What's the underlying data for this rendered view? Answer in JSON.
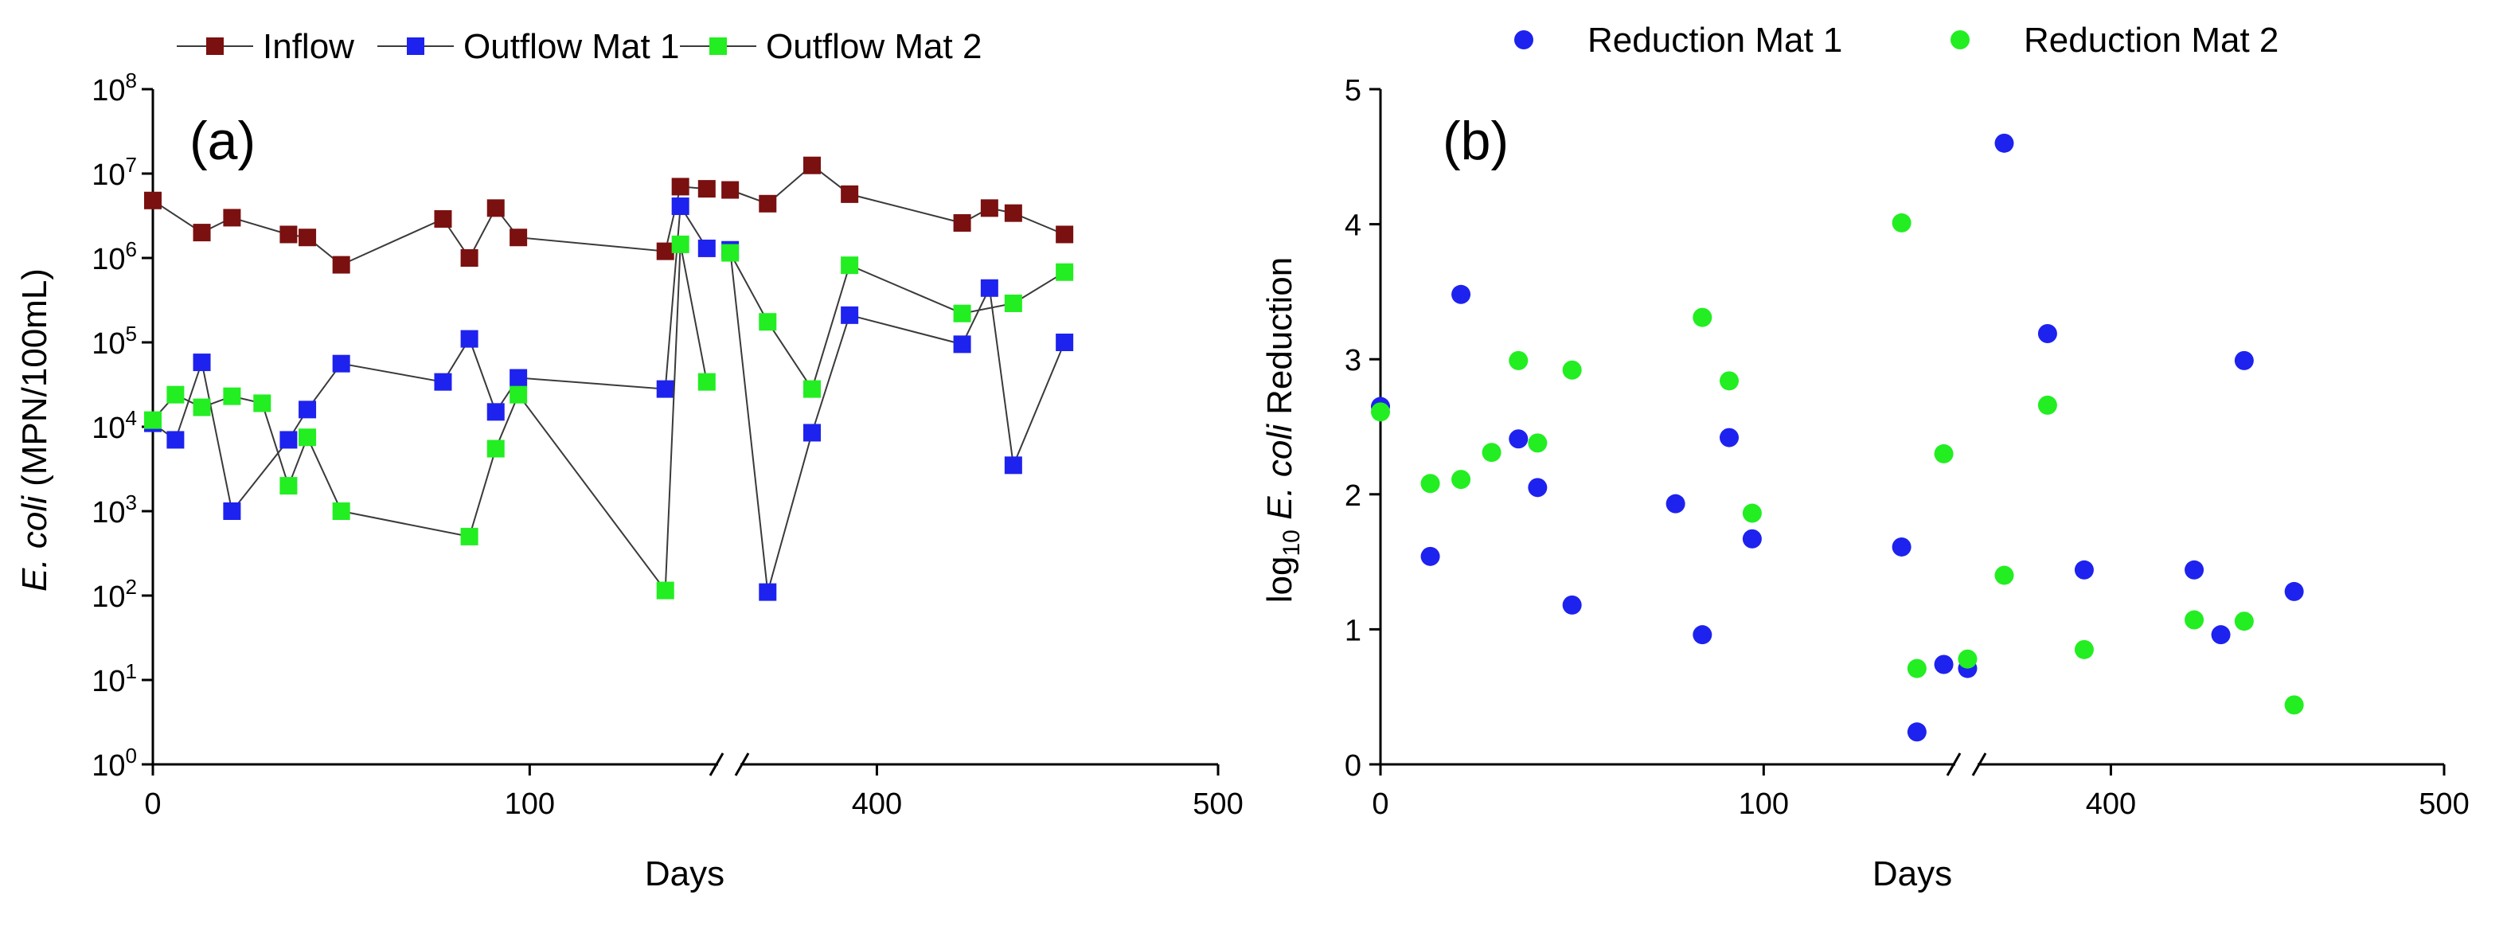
{
  "chart_data": [
    {
      "panel": "(a)",
      "type": "line",
      "xlabel": "Days",
      "ylabel": "E. coli (MPN/100mL)",
      "yscale": "log",
      "ylim": [
        1,
        100000000
      ],
      "x_segments": [
        [
          0,
          150
        ],
        [
          360,
          500
        ]
      ],
      "x_ticks": [
        {
          "value": 0,
          "label": "0"
        },
        {
          "value": 100,
          "label": "100"
        },
        {
          "value": 400,
          "label": "400"
        },
        {
          "value": 500,
          "label": "500"
        }
      ],
      "y_ticks": [
        {
          "exp": 0,
          "base": "10",
          "sup": "0"
        },
        {
          "exp": 1,
          "base": "10",
          "sup": "1"
        },
        {
          "exp": 2,
          "base": "10",
          "sup": "2"
        },
        {
          "exp": 3,
          "base": "10",
          "sup": "3"
        },
        {
          "exp": 4,
          "base": "10",
          "sup": "4"
        },
        {
          "exp": 5,
          "base": "10",
          "sup": "5"
        },
        {
          "exp": 6,
          "base": "10",
          "sup": "6"
        },
        {
          "exp": 7,
          "base": "10",
          "sup": "7"
        },
        {
          "exp": 8,
          "base": "10",
          "sup": "8"
        }
      ],
      "legend_position": "top",
      "series": [
        {
          "name": "Inflow",
          "color": "#7b1010",
          "points": [
            {
              "x": 0,
              "y": 4800000
            },
            {
              "x": 13,
              "y": 2000000
            },
            {
              "x": 21,
              "y": 3000000
            },
            {
              "x": 36,
              "y": 1900000
            },
            {
              "x": 41,
              "y": 1750000
            },
            {
              "x": 50,
              "y": 830000
            },
            {
              "x": 77,
              "y": 2900000
            },
            {
              "x": 84,
              "y": 1000000
            },
            {
              "x": 91,
              "y": 3900000
            },
            {
              "x": 97,
              "y": 1750000
            },
            {
              "x": 136,
              "y": 1200000
            },
            {
              "x": 140,
              "y": 7000000
            },
            {
              "x": 147,
              "y": 6600000
            },
            {
              "x": 357,
              "y": 6400000
            },
            {
              "x": 368,
              "y": 4400000
            },
            {
              "x": 381,
              "y": 12500000
            },
            {
              "x": 392,
              "y": 5700000
            },
            {
              "x": 425,
              "y": 2600000
            },
            {
              "x": 433,
              "y": 3900000
            },
            {
              "x": 440,
              "y": 3400000
            },
            {
              "x": 455,
              "y": 1900000
            }
          ]
        },
        {
          "name": "Outflow Mat 1",
          "color": "#1e22ee",
          "points": [
            {
              "x": 0,
              "y": 11000
            },
            {
              "x": 6,
              "y": 7000
            },
            {
              "x": 13,
              "y": 58000
            },
            {
              "x": 21,
              "y": 1000
            },
            {
              "x": 36,
              "y": 7000
            },
            {
              "x": 41,
              "y": 16000
            },
            {
              "x": 50,
              "y": 56000
            },
            {
              "x": 77,
              "y": 34000
            },
            {
              "x": 84,
              "y": 110000
            },
            {
              "x": 91,
              "y": 15000
            },
            {
              "x": 97,
              "y": 38000
            },
            {
              "x": 136,
              "y": 28000
            },
            {
              "x": 140,
              "y": 4100000
            },
            {
              "x": 147,
              "y": 1300000
            },
            {
              "x": 357,
              "y": 1250000
            },
            {
              "x": 368,
              "y": 110
            },
            {
              "x": 381,
              "y": 8500
            },
            {
              "x": 392,
              "y": 210000
            },
            {
              "x": 425,
              "y": 95000
            },
            {
              "x": 433,
              "y": 440000
            },
            {
              "x": 440,
              "y": 3500
            },
            {
              "x": 455,
              "y": 100000
            }
          ]
        },
        {
          "name": "Outflow Mat 2",
          "color": "#22ee22",
          "points": [
            {
              "x": 0,
              "y": 12000
            },
            {
              "x": 6,
              "y": 24000
            },
            {
              "x": 13,
              "y": 17000
            },
            {
              "x": 21,
              "y": 23000
            },
            {
              "x": 29,
              "y": 19000
            },
            {
              "x": 36,
              "y": 2000
            },
            {
              "x": 41,
              "y": 7500
            },
            {
              "x": 50,
              "y": 1000
            },
            {
              "x": 84,
              "y": 500
            },
            {
              "x": 91,
              "y": 5500
            },
            {
              "x": 97,
              "y": 24000
            },
            {
              "x": 136,
              "y": 115
            },
            {
              "x": 140,
              "y": 1450000
            },
            {
              "x": 147,
              "y": 34000
            },
            {
              "x": 357,
              "y": 1150000
            },
            {
              "x": 368,
              "y": 175000
            },
            {
              "x": 381,
              "y": 28000
            },
            {
              "x": 392,
              "y": 820000
            },
            {
              "x": 425,
              "y": 220000
            },
            {
              "x": 440,
              "y": 290000
            },
            {
              "x": 455,
              "y": 680000
            }
          ]
        }
      ]
    },
    {
      "panel": "(b)",
      "type": "scatter",
      "xlabel": "Days",
      "ylabel": "log10 E. coli Reduction",
      "ylabel_parts": {
        "pre": "log",
        "sub": "10",
        "italic": " E. coli",
        "post": " Reduction"
      },
      "ylim": [
        0,
        5
      ],
      "x_segments": [
        [
          0,
          150
        ],
        [
          360,
          500
        ]
      ],
      "x_ticks": [
        {
          "value": 0,
          "label": "0"
        },
        {
          "value": 100,
          "label": "100"
        },
        {
          "value": 400,
          "label": "400"
        },
        {
          "value": 500,
          "label": "500"
        }
      ],
      "y_ticks": [
        {
          "value": 0,
          "label": "0"
        },
        {
          "value": 1,
          "label": "1"
        },
        {
          "value": 2,
          "label": "2"
        },
        {
          "value": 3,
          "label": "3"
        },
        {
          "value": 4,
          "label": "4"
        },
        {
          "value": 5,
          "label": "5"
        }
      ],
      "legend_position": "top",
      "series": [
        {
          "name": "Reduction Mat 1",
          "color": "#1e22ee",
          "points": [
            {
              "x": 0,
              "y": 2.65
            },
            {
              "x": 13,
              "y": 1.54
            },
            {
              "x": 21,
              "y": 3.48
            },
            {
              "x": 36,
              "y": 2.41
            },
            {
              "x": 41,
              "y": 2.05
            },
            {
              "x": 50,
              "y": 1.18
            },
            {
              "x": 77,
              "y": 1.93
            },
            {
              "x": 84,
              "y": 0.96
            },
            {
              "x": 91,
              "y": 2.42
            },
            {
              "x": 97,
              "y": 1.67
            },
            {
              "x": 136,
              "y": 1.61
            },
            {
              "x": 140,
              "y": 0.24
            },
            {
              "x": 147,
              "y": 0.74
            },
            {
              "x": 357,
              "y": 0.71
            },
            {
              "x": 368,
              "y": 4.6
            },
            {
              "x": 381,
              "y": 3.19
            },
            {
              "x": 392,
              "y": 1.44
            },
            {
              "x": 425,
              "y": 1.44
            },
            {
              "x": 433,
              "y": 0.96
            },
            {
              "x": 440,
              "y": 2.99
            },
            {
              "x": 455,
              "y": 1.28
            }
          ]
        },
        {
          "name": "Reduction Mat 2",
          "color": "#22ee22",
          "points": [
            {
              "x": 0,
              "y": 2.61
            },
            {
              "x": 13,
              "y": 2.08
            },
            {
              "x": 21,
              "y": 2.11
            },
            {
              "x": 29,
              "y": 2.31
            },
            {
              "x": 36,
              "y": 2.99
            },
            {
              "x": 41,
              "y": 2.38
            },
            {
              "x": 50,
              "y": 2.92
            },
            {
              "x": 84,
              "y": 3.31
            },
            {
              "x": 91,
              "y": 2.84
            },
            {
              "x": 97,
              "y": 1.86
            },
            {
              "x": 136,
              "y": 4.01
            },
            {
              "x": 140,
              "y": 0.71
            },
            {
              "x": 147,
              "y": 2.3
            },
            {
              "x": 357,
              "y": 0.78
            },
            {
              "x": 368,
              "y": 1.4
            },
            {
              "x": 381,
              "y": 2.66
            },
            {
              "x": 392,
              "y": 0.85
            },
            {
              "x": 425,
              "y": 1.07
            },
            {
              "x": 440,
              "y": 1.06
            },
            {
              "x": 455,
              "y": 0.44
            }
          ]
        }
      ]
    }
  ]
}
